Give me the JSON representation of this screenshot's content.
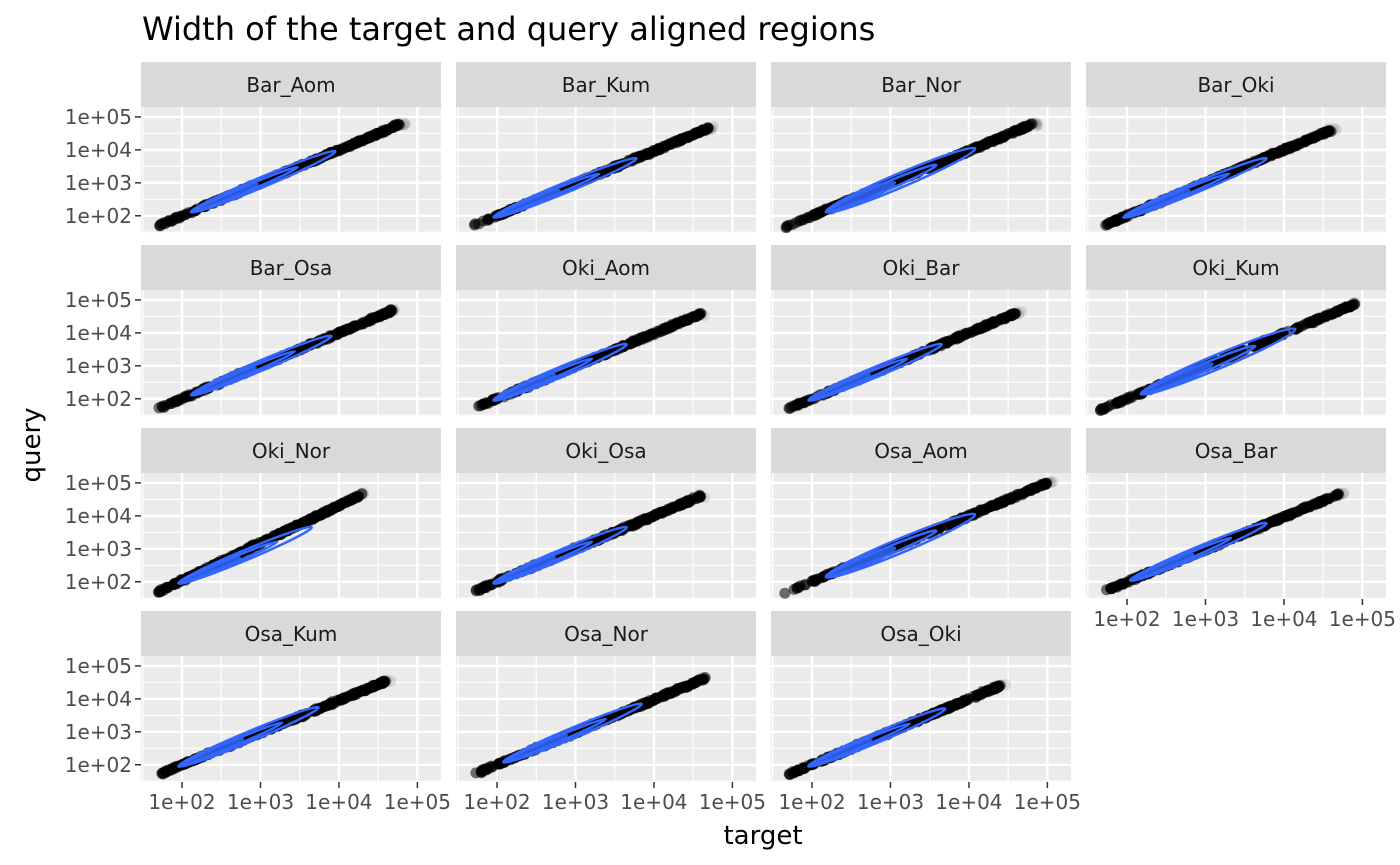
{
  "chart_data": {
    "type": "scatter",
    "title": "Width of the target and query aligned regions",
    "xlabel": "target",
    "ylabel": "query",
    "x_scale": "log10",
    "y_scale": "log10",
    "xlim": [
      30,
      200000
    ],
    "ylim": [
      30,
      200000
    ],
    "x_ticks": [
      100,
      1000,
      10000,
      100000
    ],
    "x_tick_labels": [
      "1e+02",
      "1e+03",
      "1e+04",
      "1e+05"
    ],
    "y_ticks": [
      100,
      1000,
      10000,
      100000
    ],
    "y_tick_labels": [
      "1e+02",
      "1e+03",
      "1e+04",
      "1e+05"
    ],
    "grid": true,
    "point_color": "#000000",
    "point_alpha": 0.1,
    "density_color": "#3366FF",
    "panel_background": "#EBEBEB",
    "strip_background": "#D9D9D9",
    "facets": [
      {
        "label": "Bar_Aom",
        "x_range": [
          50,
          60000
        ],
        "y_range": [
          50,
          60000
        ],
        "density_x": [
          130,
          9000
        ],
        "density_y": [
          130,
          9000
        ],
        "wide": false
      },
      {
        "label": "Bar_Kum",
        "x_range": [
          50,
          50000
        ],
        "y_range": [
          50,
          45000
        ],
        "density_x": [
          90,
          6000
        ],
        "density_y": [
          90,
          5500
        ],
        "wide": false
      },
      {
        "label": "Bar_Nor",
        "x_range": [
          45,
          65000
        ],
        "y_range": [
          45,
          60000
        ],
        "density_x": [
          150,
          12000
        ],
        "density_y": [
          130,
          11000
        ],
        "wide": true
      },
      {
        "label": "Bar_Oki",
        "x_range": [
          50,
          40000
        ],
        "y_range": [
          50,
          40000
        ],
        "density_x": [
          90,
          6000
        ],
        "density_y": [
          90,
          5500
        ],
        "wide": false
      },
      {
        "label": "Bar_Osa",
        "x_range": [
          50,
          50000
        ],
        "y_range": [
          50,
          50000
        ],
        "density_x": [
          130,
          8000
        ],
        "density_y": [
          130,
          8000
        ],
        "wide": false
      },
      {
        "label": "Oki_Aom",
        "x_range": [
          50,
          40000
        ],
        "y_range": [
          50,
          38000
        ],
        "density_x": [
          90,
          4500
        ],
        "density_y": [
          90,
          4500
        ],
        "wide": false
      },
      {
        "label": "Oki_Bar",
        "x_range": [
          50,
          40000
        ],
        "y_range": [
          50,
          40000
        ],
        "density_x": [
          90,
          4500
        ],
        "density_y": [
          90,
          4500
        ],
        "wide": false
      },
      {
        "label": "Oki_Kum",
        "x_range": [
          45,
          80000
        ],
        "y_range": [
          45,
          75000
        ],
        "density_x": [
          150,
          14000
        ],
        "density_y": [
          140,
          13000
        ],
        "wide": true
      },
      {
        "label": "Oki_Nor",
        "x_range": [
          50,
          20000
        ],
        "y_range": [
          50,
          45000
        ],
        "density_x": [
          90,
          4500
        ],
        "density_y": [
          90,
          4500
        ],
        "wide": false
      },
      {
        "label": "Oki_Osa",
        "x_range": [
          50,
          40000
        ],
        "y_range": [
          50,
          40000
        ],
        "density_x": [
          90,
          4500
        ],
        "density_y": [
          90,
          4500
        ],
        "wide": false
      },
      {
        "label": "Osa_Aom",
        "x_range": [
          45,
          100000
        ],
        "y_range": [
          45,
          100000
        ],
        "density_x": [
          150,
          12000
        ],
        "density_y": [
          140,
          11000
        ],
        "wide": true
      },
      {
        "label": "Osa_Bar",
        "x_range": [
          50,
          50000
        ],
        "y_range": [
          50,
          45000
        ],
        "density_x": [
          110,
          6000
        ],
        "density_y": [
          110,
          6000
        ],
        "wide": false
      },
      {
        "label": "Osa_Kum",
        "x_range": [
          50,
          40000
        ],
        "y_range": [
          50,
          35000
        ],
        "density_x": [
          90,
          5500
        ],
        "density_y": [
          90,
          5500
        ],
        "wide": false
      },
      {
        "label": "Osa_Nor",
        "x_range": [
          50,
          45000
        ],
        "y_range": [
          50,
          42000
        ],
        "density_x": [
          120,
          7000
        ],
        "density_y": [
          120,
          7000
        ],
        "wide": false
      },
      {
        "label": "Osa_Oki",
        "x_range": [
          50,
          25000
        ],
        "y_range": [
          50,
          25000
        ],
        "density_x": [
          90,
          5000
        ],
        "density_y": [
          90,
          5000
        ],
        "wide": false
      }
    ]
  }
}
